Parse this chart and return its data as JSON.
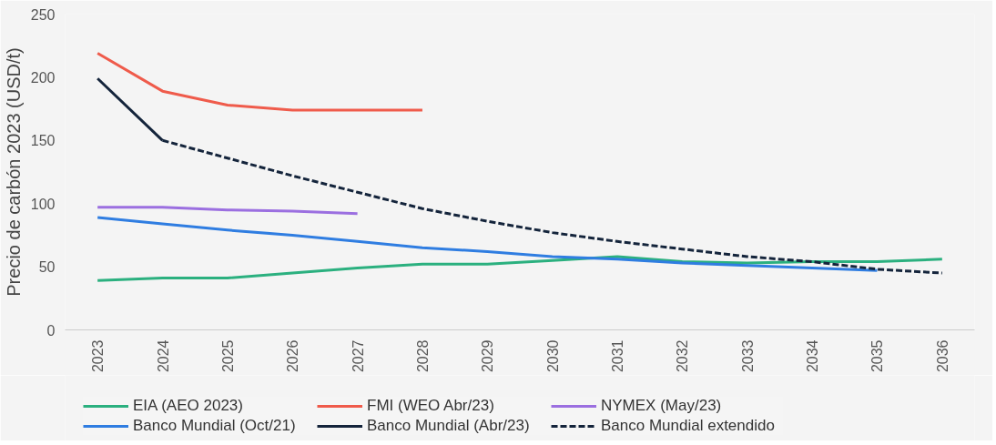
{
  "chart_data": {
    "type": "line",
    "ylabel": "Precio de carbón 2023 (USD/t)",
    "categories": [
      "2023",
      "2024",
      "2025",
      "2026",
      "2027",
      "2028",
      "2029",
      "2030",
      "2031",
      "2032",
      "2033",
      "2034",
      "2035",
      "2036"
    ],
    "series": [
      {
        "name": "EIA (AEO 2023)",
        "color": "#2bb07f",
        "values": [
          39,
          41,
          41,
          45,
          49,
          52,
          52,
          55,
          58,
          54,
          53,
          54,
          54,
          56
        ]
      },
      {
        "name": "FMI (WEO Abr/23)",
        "color": "#ef5b4b",
        "values": [
          219,
          189,
          178,
          174,
          174,
          174,
          null,
          null,
          null,
          null,
          null,
          null,
          null,
          null
        ]
      },
      {
        "name": "NYMEX (May/23)",
        "color": "#9b6fe0",
        "values": [
          97,
          97,
          95,
          94,
          92,
          null,
          null,
          null,
          null,
          null,
          null,
          null,
          null,
          null
        ]
      },
      {
        "name": "Banco Mundial (Oct/21)",
        "color": "#2f7de1",
        "values": [
          89,
          84,
          79,
          75,
          70,
          65,
          62,
          58,
          56,
          53,
          51,
          49,
          47,
          null
        ]
      },
      {
        "name": "Banco Mundial (Abr/23)",
        "color": "#14243b",
        "values": [
          199,
          150,
          null,
          null,
          null,
          null,
          null,
          null,
          null,
          null,
          null,
          null,
          null,
          null
        ]
      },
      {
        "name": "Banco Mundial extendido",
        "color": "#14243b",
        "line_style": "dashed",
        "values": [
          null,
          150,
          136,
          122,
          109,
          96,
          86,
          77,
          70,
          64,
          58,
          54,
          48,
          45
        ]
      }
    ],
    "ylim": [
      0,
      250
    ],
    "yticks": [
      0,
      50,
      100,
      150,
      200,
      250
    ],
    "grid": false,
    "legend": "bottom"
  }
}
